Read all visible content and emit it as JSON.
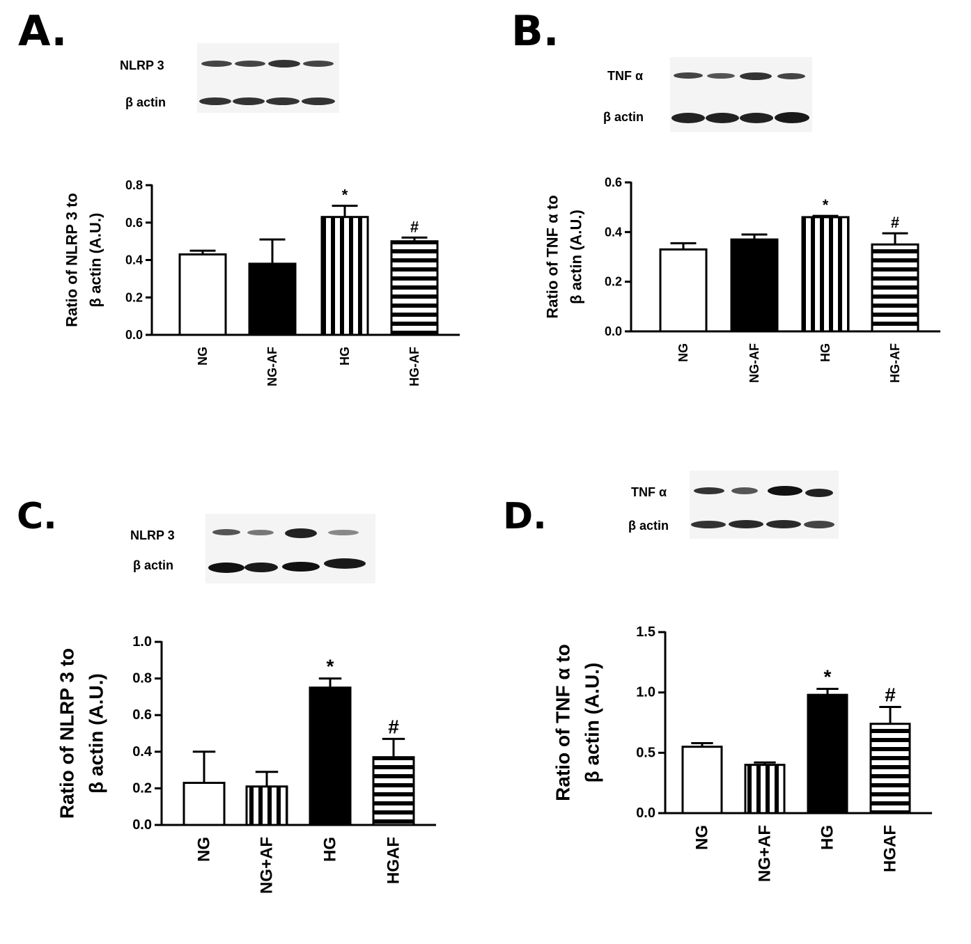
{
  "panels": [
    {
      "letter": "A.",
      "blot_labels": [
        "NLRP 3",
        "β actin"
      ],
      "chart_data": {
        "type": "bar",
        "categories": [
          "NG",
          "NG-AF",
          "HG",
          "HG-AF"
        ],
        "values": [
          0.43,
          0.38,
          0.63,
          0.5
        ],
        "errors": [
          0.02,
          0.13,
          0.06,
          0.02
        ],
        "annotations": [
          "",
          "",
          "*",
          "#"
        ],
        "fills": [
          "open",
          "solid",
          "vertical",
          "horizontal"
        ],
        "ylabel_lines": [
          "Ratio of NLRP 3 to",
          "β actin  (A.U.)"
        ],
        "ylim": [
          0,
          0.8
        ],
        "yticks": [
          "0.0",
          "0.2",
          "0.4",
          "0.6",
          "0.8"
        ]
      }
    },
    {
      "letter": "B.",
      "blot_labels": [
        "TNF α",
        "β actin"
      ],
      "chart_data": {
        "type": "bar",
        "categories": [
          "NG",
          "NG-AF",
          "HG",
          "HG-AF"
        ],
        "values": [
          0.33,
          0.37,
          0.46,
          0.35
        ],
        "errors": [
          0.025,
          0.02,
          0.005,
          0.045
        ],
        "annotations": [
          "",
          "",
          "*",
          "#"
        ],
        "fills": [
          "open",
          "solid",
          "vertical",
          "horizontal"
        ],
        "ylabel_lines": [
          "Ratio of TNF α to",
          "β actin  (A.U.)"
        ],
        "ylim": [
          0,
          0.6
        ],
        "yticks": [
          "0.0",
          "0.2",
          "0.4",
          "0.6"
        ]
      }
    },
    {
      "letter": "C.",
      "blot_labels": [
        "NLRP 3",
        "β actin"
      ],
      "chart_data": {
        "type": "bar",
        "categories": [
          "NG",
          "NG+AF",
          "HG",
          "HGAF"
        ],
        "values": [
          0.23,
          0.21,
          0.75,
          0.37
        ],
        "errors": [
          0.17,
          0.08,
          0.05,
          0.1
        ],
        "annotations": [
          "",
          "",
          "*",
          "#"
        ],
        "fills": [
          "open",
          "vertical",
          "solid",
          "horizontal"
        ],
        "ylabel_lines": [
          "Ratio of NLRP 3 to",
          "β actin  (A.U.)"
        ],
        "ylim": [
          0,
          1.0
        ],
        "yticks": [
          "0.0",
          "0.2",
          "0.4",
          "0.6",
          "0.8",
          "1.0"
        ]
      }
    },
    {
      "letter": "D.",
      "blot_labels": [
        "TNF α",
        "β actin"
      ],
      "chart_data": {
        "type": "bar",
        "categories": [
          "NG",
          "NG+AF",
          "HG",
          "HGAF"
        ],
        "values": [
          0.55,
          0.4,
          0.98,
          0.74
        ],
        "errors": [
          0.03,
          0.02,
          0.05,
          0.14
        ],
        "annotations": [
          "",
          "",
          "*",
          "#"
        ],
        "fills": [
          "open",
          "vertical",
          "solid",
          "horizontal"
        ],
        "ylabel_lines": [
          "Ratio of TNF α to",
          "β actin  (A.U.)"
        ],
        "ylim": [
          0,
          1.5
        ],
        "yticks": [
          "0.0",
          "0.5",
          "1.0",
          "1.5"
        ]
      }
    }
  ]
}
